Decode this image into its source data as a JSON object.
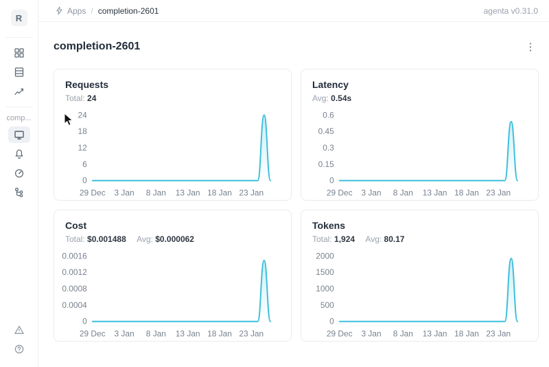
{
  "app": {
    "logo_letter": "R",
    "breadcrumb": {
      "apps_label": "Apps",
      "separator": "/",
      "current": "completion-2601"
    },
    "version": "agenta v0.31.0"
  },
  "sidebar": {
    "app_label": "comp...",
    "icons_top": [
      "grid-icon",
      "table-icon",
      "line-chart-icon"
    ],
    "icons_app": [
      "monitor-icon",
      "bell-icon",
      "gauge-icon",
      "tree-icon"
    ],
    "icons_bottom": [
      "warning-triangle-icon",
      "help-circle-icon"
    ],
    "selected_item": "monitor-icon"
  },
  "page": {
    "title": "completion-2601",
    "menu_icon": "ellipsis-vertical-icon",
    "menu_glyph": "⋮"
  },
  "colors": {
    "line": "#3dbfdc",
    "fill_top": "rgba(61,191,219,0.28)",
    "fill_bottom": "rgba(61,191,219,0)"
  },
  "chart_data": [
    {
      "type": "line",
      "title": "Requests",
      "stats": [
        {
          "label": "Total:",
          "value": "24"
        }
      ],
      "x_tick_labels": [
        "29 Dec",
        "3 Jan",
        "8 Jan",
        "13 Jan",
        "18 Jan",
        "23 Jan"
      ],
      "x_tick_days": [
        0,
        5,
        10,
        15,
        20,
        25
      ],
      "n_days": 29,
      "values": [
        0,
        0,
        0,
        0,
        0,
        0,
        0,
        0,
        0,
        0,
        0,
        0,
        0,
        0,
        0,
        0,
        0,
        0,
        0,
        0,
        0,
        0,
        0,
        0,
        0,
        0,
        0,
        24,
        0
      ],
      "y_ticks": [
        "0",
        "6",
        "12",
        "18",
        "24"
      ],
      "ylim": [
        0,
        24
      ],
      "xlabel": "",
      "ylabel": "",
      "grid": false,
      "legend": false
    },
    {
      "type": "line",
      "title": "Latency",
      "stats": [
        {
          "label": "Avg:",
          "value": "0.54s"
        }
      ],
      "x_tick_labels": [
        "29 Dec",
        "3 Jan",
        "8 Jan",
        "13 Jan",
        "18 Jan",
        "23 Jan"
      ],
      "x_tick_days": [
        0,
        5,
        10,
        15,
        20,
        25
      ],
      "n_days": 29,
      "values": [
        0,
        0,
        0,
        0,
        0,
        0,
        0,
        0,
        0,
        0,
        0,
        0,
        0,
        0,
        0,
        0,
        0,
        0,
        0,
        0,
        0,
        0,
        0,
        0,
        0,
        0,
        0,
        0.54,
        0
      ],
      "y_ticks": [
        "0",
        "0.15",
        "0.3",
        "0.45",
        "0.6"
      ],
      "ylim": [
        0,
        0.6
      ],
      "xlabel": "",
      "ylabel": "",
      "grid": false,
      "legend": false
    },
    {
      "type": "line",
      "title": "Cost",
      "stats": [
        {
          "label": "Total:",
          "value": "$0.001488"
        },
        {
          "label": "Avg:",
          "value": "$0.000062"
        }
      ],
      "x_tick_labels": [
        "29 Dec",
        "3 Jan",
        "8 Jan",
        "13 Jan",
        "18 Jan",
        "23 Jan"
      ],
      "x_tick_days": [
        0,
        5,
        10,
        15,
        20,
        25
      ],
      "n_days": 29,
      "values": [
        0,
        0,
        0,
        0,
        0,
        0,
        0,
        0,
        0,
        0,
        0,
        0,
        0,
        0,
        0,
        0,
        0,
        0,
        0,
        0,
        0,
        0,
        0,
        0,
        0,
        0,
        0,
        0.001488,
        0
      ],
      "y_ticks": [
        "0",
        "0.0004",
        "0.0008",
        "0.0012",
        "0.0016"
      ],
      "ylim": [
        0,
        0.0016
      ],
      "xlabel": "",
      "ylabel": "",
      "grid": false,
      "legend": false
    },
    {
      "type": "line",
      "title": "Tokens",
      "stats": [
        {
          "label": "Total:",
          "value": "1,924"
        },
        {
          "label": "Avg:",
          "value": "80.17"
        }
      ],
      "x_tick_labels": [
        "29 Dec",
        "3 Jan",
        "8 Jan",
        "13 Jan",
        "18 Jan",
        "23 Jan"
      ],
      "x_tick_days": [
        0,
        5,
        10,
        15,
        20,
        25
      ],
      "n_days": 29,
      "values": [
        0,
        0,
        0,
        0,
        0,
        0,
        0,
        0,
        0,
        0,
        0,
        0,
        0,
        0,
        0,
        0,
        0,
        0,
        0,
        0,
        0,
        0,
        0,
        0,
        0,
        0,
        0,
        1924,
        0
      ],
      "y_ticks": [
        "0",
        "500",
        "1000",
        "1500",
        "2000"
      ],
      "ylim": [
        0,
        2000
      ],
      "xlabel": "",
      "ylabel": "",
      "grid": false,
      "legend": false
    }
  ]
}
